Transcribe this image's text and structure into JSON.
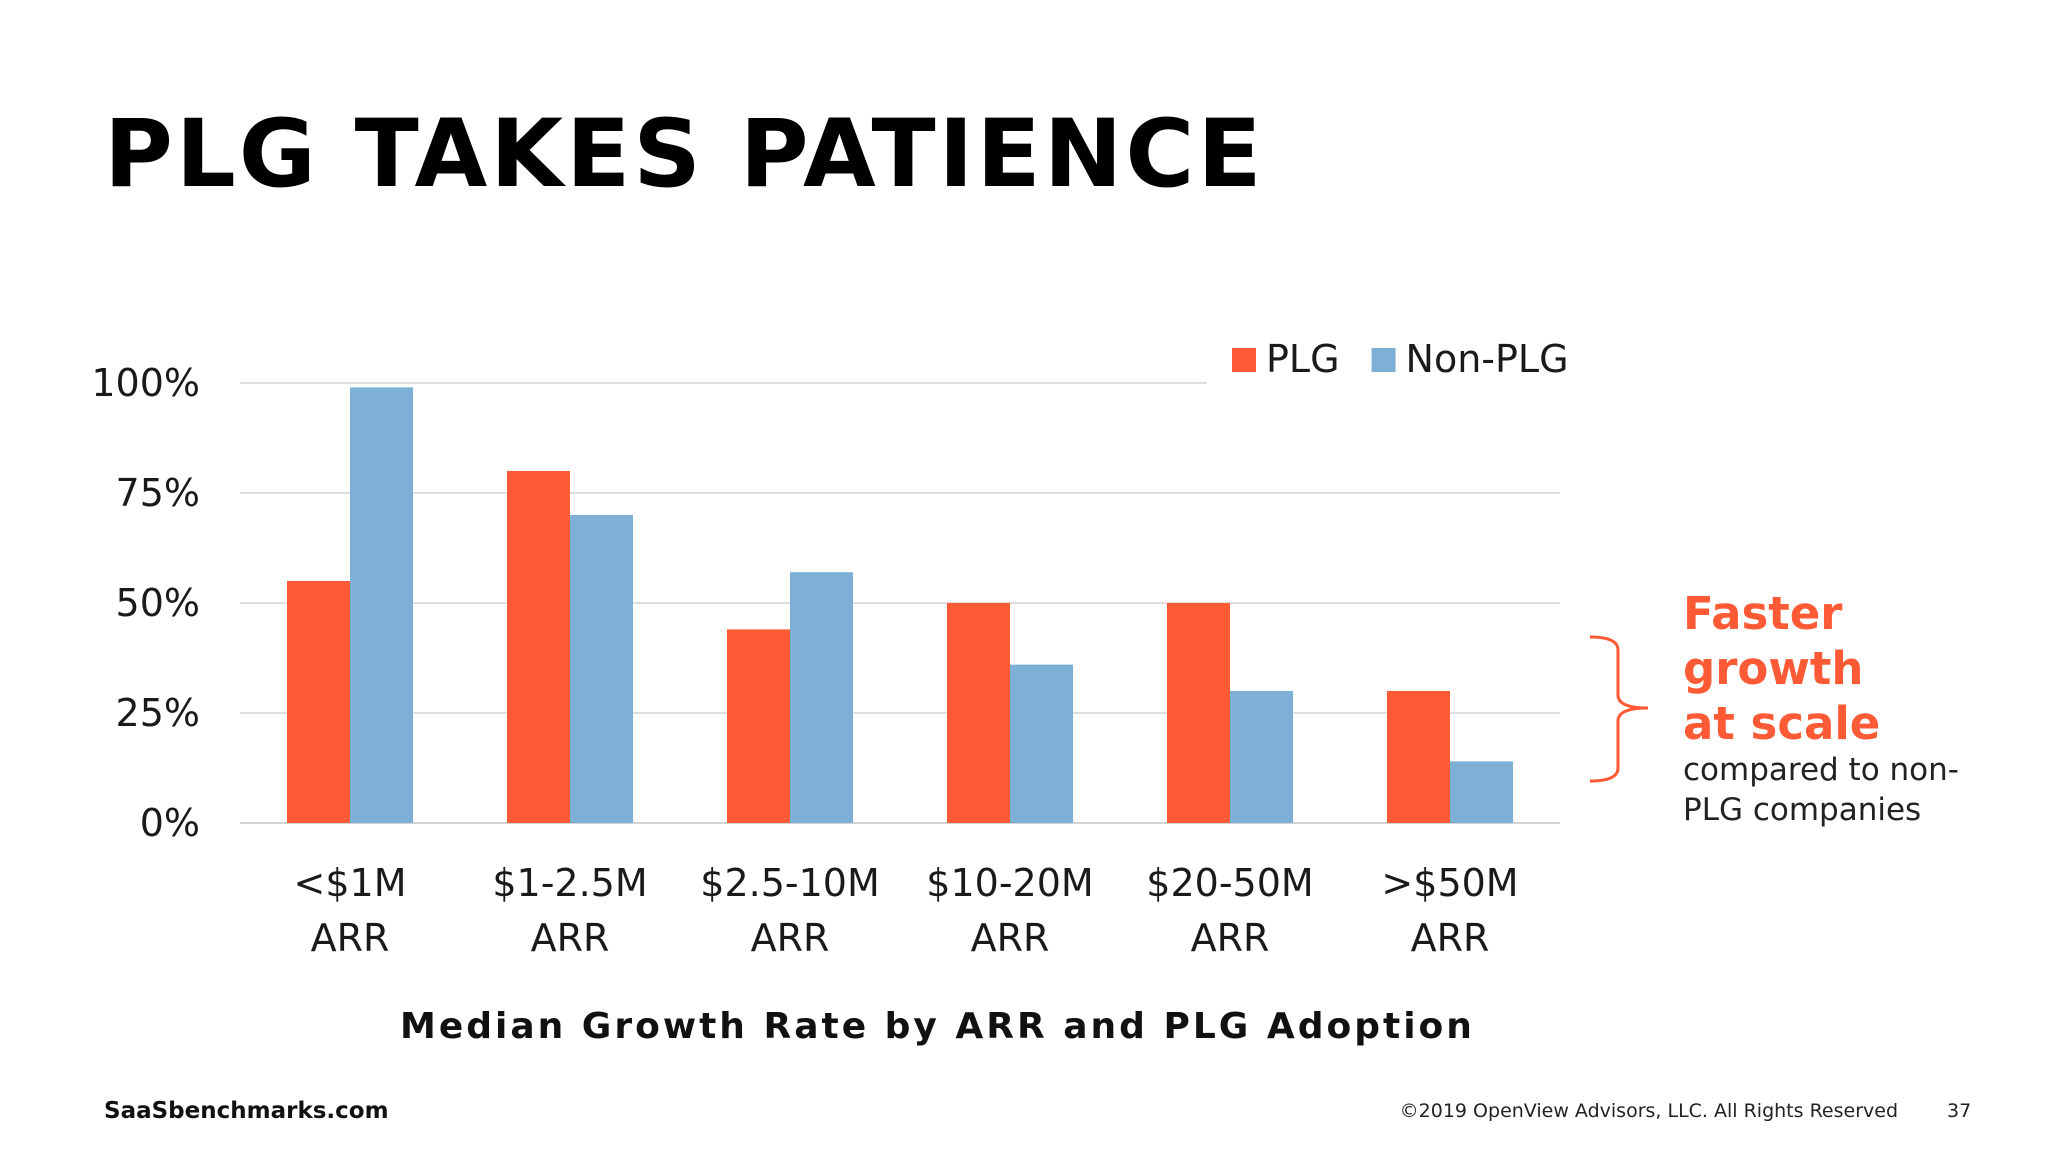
{
  "slide": {
    "title": "PLG TAKES PATIENCE",
    "caption": "Median Growth Rate by ARR and PLG Adoption",
    "site": "SaaSbenchmarks.com",
    "copyright": "©2019 OpenView Advisors, LLC. All Rights Reserved",
    "page_number": "37"
  },
  "callout": {
    "headline": [
      "Faster",
      "growth",
      "at scale"
    ],
    "subtext": [
      "compared to non-",
      "PLG companies"
    ],
    "headline_color": "#ff5a36",
    "bracket_color": "#ff5a36"
  },
  "chart_data": {
    "type": "bar",
    "categories": [
      [
        "<$1M",
        "ARR"
      ],
      [
        "$1-2.5M",
        "ARR"
      ],
      [
        "$2.5-10M",
        "ARR"
      ],
      [
        "$10-20M",
        "ARR"
      ],
      [
        "$20-50M",
        "ARR"
      ],
      [
        ">$50M",
        "ARR"
      ]
    ],
    "series": [
      {
        "name": "PLG",
        "color": "#ff5a36",
        "values": [
          55,
          80,
          44,
          50,
          50,
          30
        ]
      },
      {
        "name": "Non-PLG",
        "color": "#7eb0d6",
        "values": [
          99,
          70,
          57,
          36,
          30,
          14
        ]
      }
    ],
    "y_ticks": [
      "0%",
      "25%",
      "50%",
      "75%",
      "100%"
    ],
    "ylim": [
      0,
      100
    ],
    "grid": true,
    "legend_position": "top-right"
  }
}
